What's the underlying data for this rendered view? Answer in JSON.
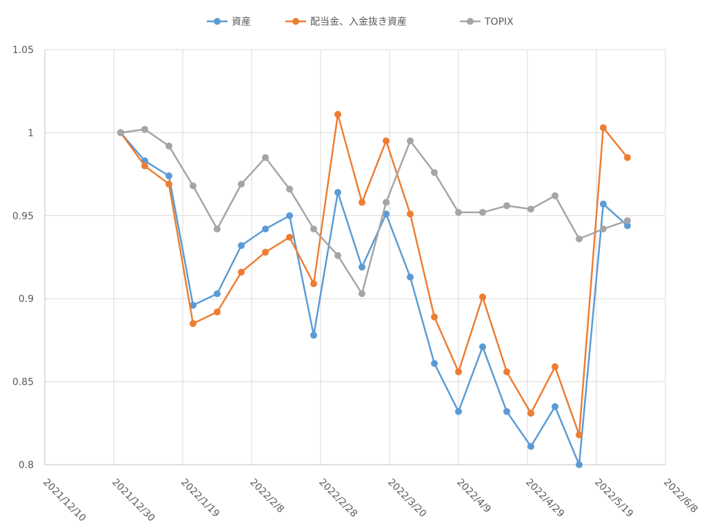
{
  "chart_data": {
    "type": "line",
    "title": "",
    "xlabel": "",
    "ylabel": "",
    "legend_position": "top",
    "grid": true,
    "x_axis_type": "date",
    "xlim": [
      "2021-12-10",
      "2022-06-08"
    ],
    "ylim": [
      0.8,
      1.05
    ],
    "x_tick_labels": [
      "2021/12/10",
      "2021/12/30",
      "2022/1/19",
      "2022/2/8",
      "2022/2/28",
      "2022/3/20",
      "2022/4/9",
      "2022/4/29",
      "2022/5/19",
      "2022/6/8"
    ],
    "y_tick_labels": [
      "0.8",
      "0.85",
      "0.9",
      "0.95",
      "1",
      "1.05"
    ],
    "x": [
      "2022-01-01",
      "2022-01-08",
      "2022-01-15",
      "2022-01-22",
      "2022-01-29",
      "2022-02-05",
      "2022-02-12",
      "2022-02-19",
      "2022-02-26",
      "2022-03-05",
      "2022-03-12",
      "2022-03-19",
      "2022-03-26",
      "2022-04-02",
      "2022-04-09",
      "2022-04-16",
      "2022-04-23",
      "2022-04-30",
      "2022-05-07",
      "2022-05-14",
      "2022-05-21",
      "2022-05-28"
    ],
    "series": [
      {
        "name": "資産",
        "color": "#5b9bd5",
        "values": [
          1.0,
          0.983,
          0.974,
          0.896,
          0.903,
          0.932,
          0.942,
          0.95,
          0.878,
          0.964,
          0.919,
          0.951,
          0.913,
          0.861,
          0.832,
          0.871,
          0.832,
          0.811,
          0.835,
          0.8,
          0.957,
          0.944
        ]
      },
      {
        "name": "配当金、入金抜き資産",
        "color": "#ed7d31",
        "values": [
          1.0,
          0.98,
          0.969,
          0.885,
          0.892,
          0.916,
          0.928,
          0.937,
          0.909,
          1.011,
          0.958,
          0.995,
          0.951,
          0.889,
          0.856,
          0.901,
          0.856,
          0.831,
          0.859,
          0.818,
          1.003,
          0.985
        ]
      },
      {
        "name": "TOPIX",
        "color": "#a5a5a5",
        "values": [
          1.0,
          1.002,
          0.992,
          0.968,
          0.942,
          0.969,
          0.985,
          0.966,
          0.942,
          0.926,
          0.903,
          0.958,
          0.995,
          0.976,
          0.952,
          0.952,
          0.956,
          0.954,
          0.962,
          0.936,
          0.942,
          0.947
        ]
      }
    ]
  }
}
